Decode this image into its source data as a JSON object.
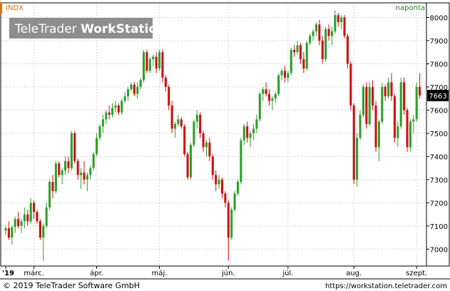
{
  "header": {
    "symbol": "INDX",
    "period": "naponta",
    "watermark_brand": "TeleTrader",
    "watermark_product": "WorkStation"
  },
  "footer": {
    "copyright": "© 2019 TeleTrader Software GmbH",
    "url": "https://workstation.teletrader.com"
  },
  "colors": {
    "up": "#2ca02c",
    "down": "#cc1111",
    "header_text": "#e07000",
    "period_text": "#1a8c1a",
    "grid": "#bbbbbb",
    "last_price_bg": "#000000"
  },
  "chart_data": {
    "type": "candlestick",
    "ylim": [
      6930,
      8060
    ],
    "y_ticks": [
      7000,
      7100,
      7200,
      7300,
      7400,
      7500,
      7600,
      7700,
      7800,
      7900,
      8000
    ],
    "x_tick_labels": [
      {
        "label": "'19",
        "index": 0
      },
      {
        "label": "márc.",
        "index": 9
      },
      {
        "label": "ápr.",
        "index": 29
      },
      {
        "label": "máj.",
        "index": 49
      },
      {
        "label": "jún.",
        "index": 71
      },
      {
        "label": "júl.",
        "index": 90
      },
      {
        "label": "aug.",
        "index": 111
      },
      {
        "label": "szept.",
        "index": 131
      }
    ],
    "last_price": "7663",
    "candles": [
      [
        7080,
        7100,
        7060,
        7090
      ],
      [
        7090,
        7120,
        7040,
        7050
      ],
      [
        7050,
        7100,
        7020,
        7095
      ],
      [
        7095,
        7140,
        7070,
        7130
      ],
      [
        7130,
        7160,
        7090,
        7100
      ],
      [
        7100,
        7130,
        7070,
        7120
      ],
      [
        7120,
        7180,
        7090,
        7150
      ],
      [
        7150,
        7170,
        7100,
        7120
      ],
      [
        7120,
        7220,
        7110,
        7200
      ],
      [
        7200,
        7210,
        7130,
        7160
      ],
      [
        7160,
        7170,
        7110,
        7120
      ],
      [
        7120,
        7130,
        7040,
        7050
      ],
      [
        7050,
        7110,
        6950,
        7100
      ],
      [
        7100,
        7200,
        7090,
        7180
      ],
      [
        7180,
        7300,
        7170,
        7290
      ],
      [
        7290,
        7320,
        7220,
        7250
      ],
      [
        7250,
        7380,
        7240,
        7370
      ],
      [
        7370,
        7380,
        7310,
        7320
      ],
      [
        7320,
        7350,
        7280,
        7340
      ],
      [
        7340,
        7400,
        7320,
        7380
      ],
      [
        7380,
        7400,
        7330,
        7350
      ],
      [
        7350,
        7510,
        7340,
        7500
      ],
      [
        7500,
        7510,
        7370,
        7380
      ],
      [
        7380,
        7390,
        7300,
        7320
      ],
      [
        7320,
        7350,
        7260,
        7330
      ],
      [
        7330,
        7380,
        7280,
        7300
      ],
      [
        7300,
        7330,
        7250,
        7320
      ],
      [
        7320,
        7360,
        7300,
        7350
      ],
      [
        7350,
        7420,
        7340,
        7410
      ],
      [
        7410,
        7500,
        7400,
        7480
      ],
      [
        7480,
        7540,
        7470,
        7530
      ],
      [
        7530,
        7580,
        7500,
        7560
      ],
      [
        7560,
        7600,
        7540,
        7590
      ],
      [
        7590,
        7620,
        7560,
        7580
      ],
      [
        7580,
        7630,
        7570,
        7610
      ],
      [
        7610,
        7640,
        7590,
        7620
      ],
      [
        7620,
        7630,
        7580,
        7590
      ],
      [
        7590,
        7650,
        7580,
        7640
      ],
      [
        7640,
        7680,
        7630,
        7660
      ],
      [
        7660,
        7700,
        7640,
        7690
      ],
      [
        7690,
        7720,
        7680,
        7710
      ],
      [
        7710,
        7720,
        7660,
        7670
      ],
      [
        7670,
        7720,
        7650,
        7700
      ],
      [
        7700,
        7740,
        7690,
        7730
      ],
      [
        7730,
        7860,
        7720,
        7850
      ],
      [
        7850,
        7860,
        7760,
        7770
      ],
      [
        7770,
        7830,
        7760,
        7820
      ],
      [
        7820,
        7840,
        7790,
        7830
      ],
      [
        7830,
        7850,
        7760,
        7780
      ],
      [
        7780,
        7860,
        7770,
        7850
      ],
      [
        7850,
        7860,
        7720,
        7740
      ],
      [
        7740,
        7750,
        7680,
        7700
      ],
      [
        7700,
        7710,
        7600,
        7620
      ],
      [
        7620,
        7640,
        7500,
        7520
      ],
      [
        7520,
        7550,
        7480,
        7540
      ],
      [
        7540,
        7580,
        7530,
        7560
      ],
      [
        7560,
        7570,
        7520,
        7530
      ],
      [
        7530,
        7540,
        7400,
        7410
      ],
      [
        7410,
        7420,
        7300,
        7310
      ],
      [
        7310,
        7460,
        7300,
        7450
      ],
      [
        7450,
        7560,
        7440,
        7550
      ],
      [
        7550,
        7600,
        7520,
        7580
      ],
      [
        7580,
        7590,
        7480,
        7500
      ],
      [
        7500,
        7510,
        7420,
        7440
      ],
      [
        7440,
        7470,
        7400,
        7460
      ],
      [
        7460,
        7480,
        7380,
        7400
      ],
      [
        7400,
        7410,
        7300,
        7320
      ],
      [
        7320,
        7340,
        7250,
        7280
      ],
      [
        7280,
        7320,
        7260,
        7300
      ],
      [
        7300,
        7310,
        7220,
        7240
      ],
      [
        7240,
        7250,
        7180,
        7200
      ],
      [
        7200,
        7210,
        6950,
        7050
      ],
      [
        7050,
        7180,
        7040,
        7170
      ],
      [
        7170,
        7250,
        7160,
        7240
      ],
      [
        7240,
        7300,
        7230,
        7290
      ],
      [
        7290,
        7480,
        7280,
        7470
      ],
      [
        7470,
        7540,
        7450,
        7530
      ],
      [
        7530,
        7550,
        7460,
        7480
      ],
      [
        7480,
        7510,
        7440,
        7500
      ],
      [
        7500,
        7540,
        7470,
        7520
      ],
      [
        7520,
        7580,
        7500,
        7560
      ],
      [
        7560,
        7680,
        7550,
        7670
      ],
      [
        7670,
        7700,
        7640,
        7690
      ],
      [
        7690,
        7720,
        7660,
        7670
      ],
      [
        7670,
        7690,
        7620,
        7640
      ],
      [
        7640,
        7660,
        7600,
        7650
      ],
      [
        7650,
        7680,
        7630,
        7670
      ],
      [
        7670,
        7760,
        7660,
        7750
      ],
      [
        7750,
        7780,
        7730,
        7770
      ],
      [
        7770,
        7790,
        7720,
        7740
      ],
      [
        7740,
        7770,
        7720,
        7760
      ],
      [
        7760,
        7870,
        7750,
        7860
      ],
      [
        7860,
        7880,
        7830,
        7850
      ],
      [
        7850,
        7900,
        7840,
        7880
      ],
      [
        7880,
        7890,
        7800,
        7820
      ],
      [
        7820,
        7850,
        7760,
        7780
      ],
      [
        7780,
        7900,
        7770,
        7890
      ],
      [
        7890,
        7930,
        7880,
        7920
      ],
      [
        7920,
        7950,
        7900,
        7940
      ],
      [
        7940,
        7980,
        7920,
        7970
      ],
      [
        7970,
        7990,
        7880,
        7900
      ],
      [
        7900,
        7920,
        7800,
        7820
      ],
      [
        7820,
        7960,
        7810,
        7950
      ],
      [
        7950,
        7970,
        7900,
        7920
      ],
      [
        7920,
        7960,
        7880,
        7940
      ],
      [
        7940,
        8030,
        7930,
        8010
      ],
      [
        8010,
        8020,
        7960,
        7980
      ],
      [
        7980,
        8010,
        7950,
        8000
      ],
      [
        8000,
        8010,
        7910,
        7920
      ],
      [
        7920,
        7930,
        7780,
        7800
      ],
      [
        7800,
        7810,
        7600,
        7620
      ],
      [
        7620,
        7630,
        7280,
        7300
      ],
      [
        7300,
        7500,
        7270,
        7480
      ],
      [
        7480,
        7600,
        7470,
        7580
      ],
      [
        7580,
        7710,
        7570,
        7700
      ],
      [
        7700,
        7720,
        7520,
        7540
      ],
      [
        7540,
        7720,
        7530,
        7700
      ],
      [
        7700,
        7730,
        7600,
        7620
      ],
      [
        7620,
        7640,
        7420,
        7440
      ],
      [
        7440,
        7560,
        7380,
        7550
      ],
      [
        7550,
        7720,
        7540,
        7700
      ],
      [
        7700,
        7710,
        7640,
        7660
      ],
      [
        7660,
        7740,
        7650,
        7720
      ],
      [
        7720,
        7760,
        7640,
        7660
      ],
      [
        7660,
        7670,
        7460,
        7480
      ],
      [
        7480,
        7550,
        7440,
        7530
      ],
      [
        7530,
        7740,
        7520,
        7720
      ],
      [
        7720,
        7740,
        7580,
        7600
      ],
      [
        7600,
        7610,
        7420,
        7440
      ],
      [
        7440,
        7560,
        7420,
        7550
      ],
      [
        7550,
        7580,
        7500,
        7560
      ],
      [
        7560,
        7720,
        7550,
        7700
      ],
      [
        7700,
        7760,
        7650,
        7663
      ]
    ]
  }
}
